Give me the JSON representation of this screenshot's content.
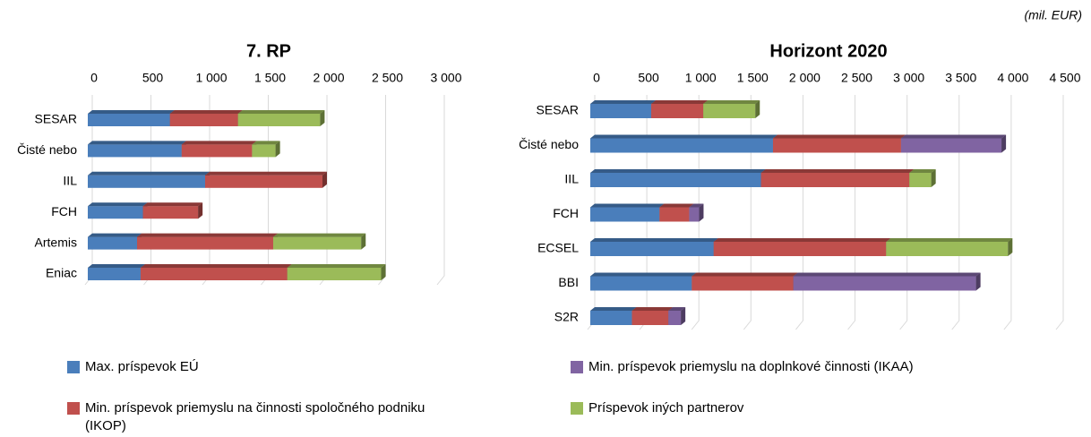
{
  "unit": "(mil. EUR)",
  "legend": [
    {
      "name": "Max. príspevok EÚ",
      "color": "#4a7ebb"
    },
    {
      "name": "Min. príspevok priemyslu na činnosti spoločného podniku (IKOP)",
      "color": "#c0504d"
    },
    {
      "name": "Min. príspevok priemyslu na doplnkové činnosti (IKAA)",
      "color": "#8064a2"
    },
    {
      "name": "Príspevok iných partnerov",
      "color": "#9bbb59"
    }
  ],
  "chart_data": [
    {
      "type": "bar",
      "title": "7. RP",
      "categories": [
        "SESAR",
        "Čisté nebo",
        "IIL",
        "FCH",
        "Artemis",
        "Eniac"
      ],
      "series": [
        {
          "values": [
            700,
            800,
            1000,
            470,
            420,
            450
          ]
        },
        {
          "values": [
            580,
            600,
            1000,
            470,
            1160,
            1250
          ]
        },
        {
          "values": [
            null,
            null,
            null,
            null,
            null,
            null
          ]
        },
        {
          "values": [
            700,
            200,
            null,
            null,
            750,
            800
          ]
        }
      ],
      "xlim": [
        0,
        3000
      ],
      "xticks": [
        0,
        500,
        {
          "value": 1000,
          "label": "1 000"
        },
        {
          "value": 1500,
          "label": "1 500"
        },
        {
          "value": 2000,
          "label": "2 000"
        },
        {
          "value": 2500,
          "label": "2 500"
        },
        {
          "value": 3000,
          "label": "3 000"
        }
      ]
    },
    {
      "type": "bar",
      "title": "Horizont 2020",
      "categories": [
        "SESAR",
        "Čisté nebo",
        "IIL",
        "FCH",
        "ECSEL",
        "BBI",
        "S2R"
      ],
      "series": [
        {
          "values": [
            585,
            1755,
            1640,
            665,
            1185,
            975,
            400
          ]
        },
        {
          "values": [
            500,
            1230,
            1425,
            285,
            1657,
            975,
            350
          ]
        },
        {
          "values": [
            null,
            965,
            null,
            95,
            null,
            1755,
            120
          ]
        },
        {
          "values": [
            500,
            null,
            210,
            null,
            1170,
            null,
            null
          ]
        }
      ],
      "xlim": [
        0,
        4500
      ],
      "xticks": [
        0,
        500,
        {
          "value": 1000,
          "label": "1 000"
        },
        {
          "value": 1500,
          "label": "1 500"
        },
        {
          "value": 2000,
          "label": "2 000"
        },
        {
          "value": 2500,
          "label": "2 500"
        },
        {
          "value": 3000,
          "label": "3 000"
        },
        {
          "value": 3500,
          "label": "3 500"
        },
        {
          "value": 4000,
          "label": "4 000"
        },
        {
          "value": 4500,
          "label": "4 500"
        }
      ]
    }
  ]
}
